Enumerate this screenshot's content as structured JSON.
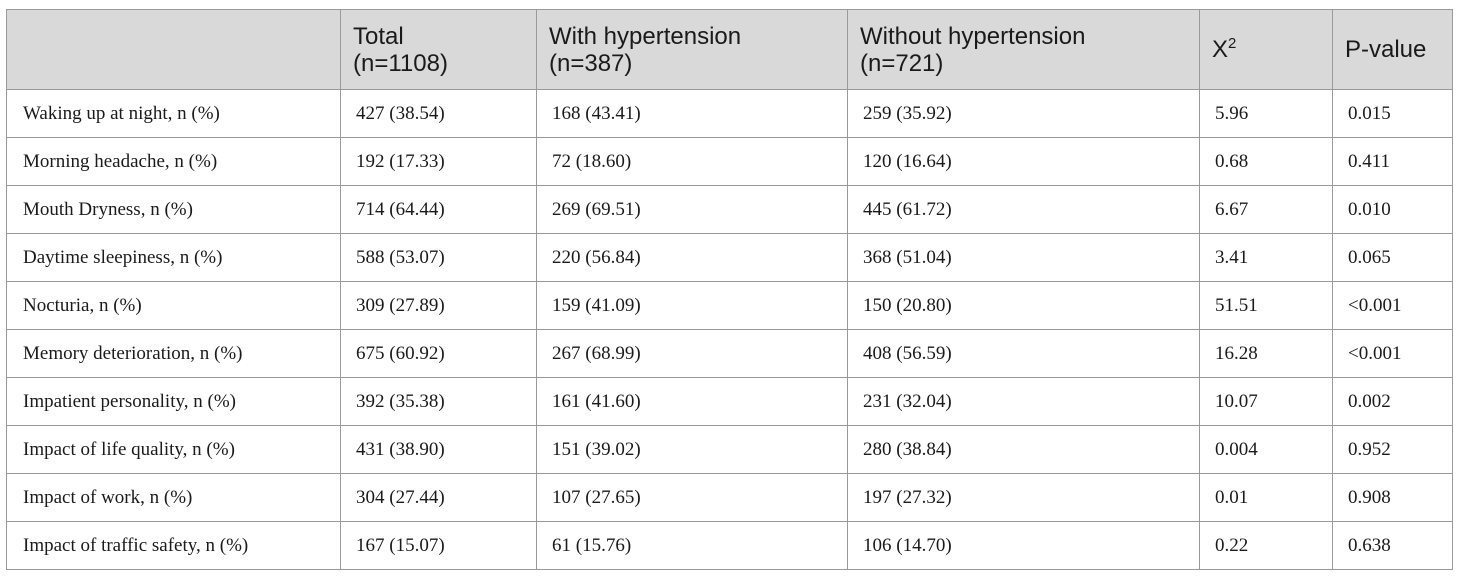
{
  "table": {
    "headers": {
      "label": "",
      "total": "Total\n(n=1108)",
      "with": "With hypertension\n(n=387)",
      "without": "Without hypertension\n(n=721)",
      "chi_base": "X",
      "chi_sup": "2",
      "p": "P-value"
    },
    "rows": [
      [
        "Waking up at night, n (%)",
        "427 (38.54)",
        "168 (43.41)",
        "259 (35.92)",
        "5.96",
        "0.015"
      ],
      [
        "Morning headache, n (%)",
        "192 (17.33)",
        "72 (18.60)",
        "120 (16.64)",
        "0.68",
        "0.411"
      ],
      [
        "Mouth Dryness, n (%)",
        "714 (64.44)",
        "269 (69.51)",
        "445 (61.72)",
        "6.67",
        "0.010"
      ],
      [
        "Daytime sleepiness, n (%)",
        "588 (53.07)",
        "220 (56.84)",
        "368 (51.04)",
        "3.41",
        "0.065"
      ],
      [
        "Nocturia, n (%)",
        "309 (27.89)",
        "159 (41.09)",
        "150 (20.80)",
        "51.51",
        "<0.001"
      ],
      [
        "Memory deterioration, n (%)",
        "675 (60.92)",
        "267 (68.99)",
        "408 (56.59)",
        "16.28",
        "<0.001"
      ],
      [
        "Impatient personality, n (%)",
        "392 (35.38)",
        "161 (41.60)",
        "231 (32.04)",
        "10.07",
        "0.002"
      ],
      [
        "Impact of life quality, n (%)",
        "431 (38.90)",
        "151 (39.02)",
        "280 (38.84)",
        "0.004",
        "0.952"
      ],
      [
        "Impact of work, n (%)",
        "304 (27.44)",
        "107 (27.65)",
        "197 (27.32)",
        "0.01",
        "0.908"
      ],
      [
        "Impact of traffic safety, n (%)",
        "167 (15.07)",
        "61 (15.76)",
        "106 (14.70)",
        "0.22",
        "0.638"
      ]
    ]
  }
}
